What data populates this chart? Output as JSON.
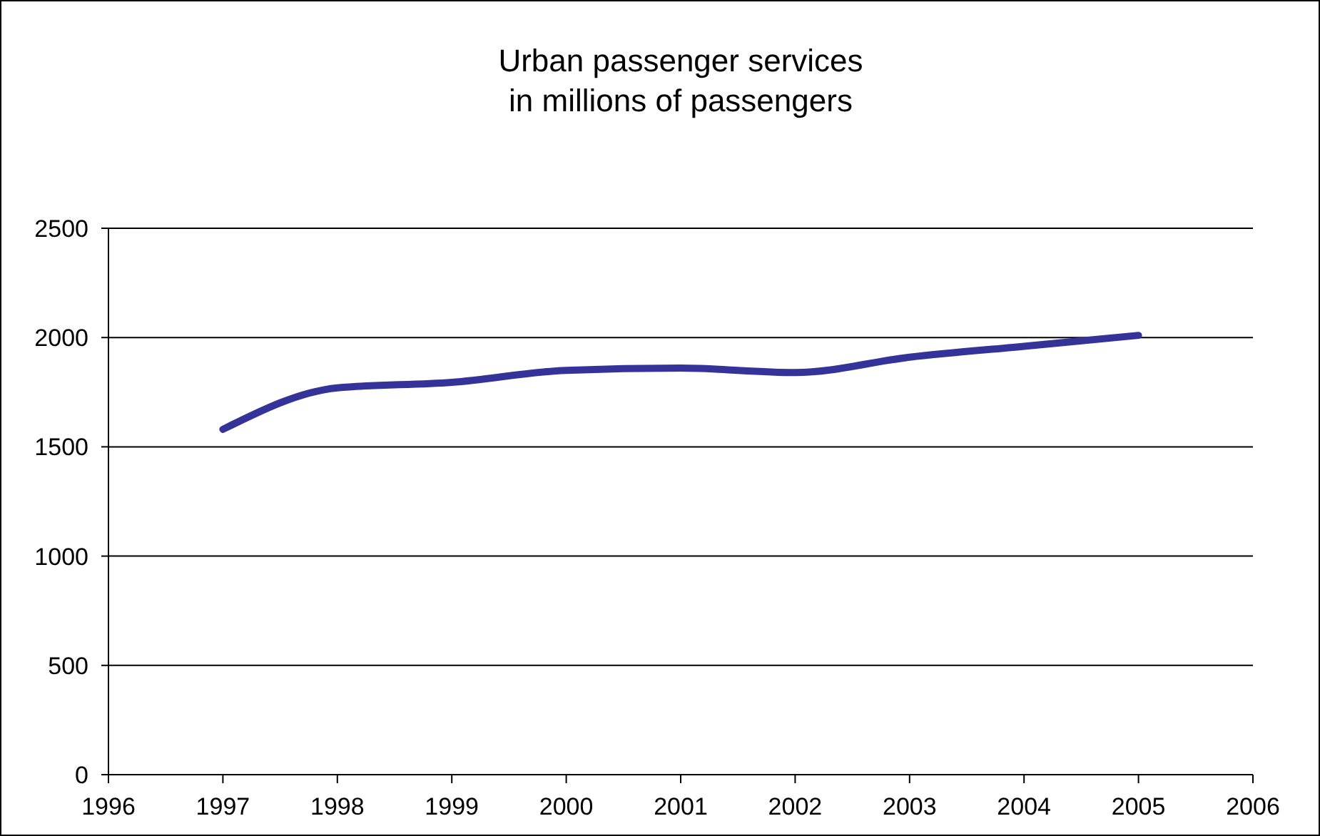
{
  "chart_data": {
    "type": "line",
    "title": "Urban passenger services\nin millions of passengers",
    "x": [
      1997,
      1998,
      1999,
      2000,
      2001,
      2002,
      2003,
      2004,
      2005
    ],
    "series": [
      {
        "color": "#333399",
        "values": [
          1580,
          1770,
          1795,
          1850,
          1860,
          1840,
          1910,
          1960,
          2010
        ]
      }
    ],
    "xlim": [
      1996,
      2006
    ],
    "xticks": [
      1996,
      1997,
      1998,
      1999,
      2000,
      2001,
      2002,
      2003,
      2004,
      2005,
      2006
    ],
    "ylim": [
      0,
      2500
    ],
    "yticks": [
      0,
      500,
      1000,
      1500,
      2000,
      2500
    ],
    "grid": "y",
    "marker": "none",
    "line_style": "solid"
  }
}
